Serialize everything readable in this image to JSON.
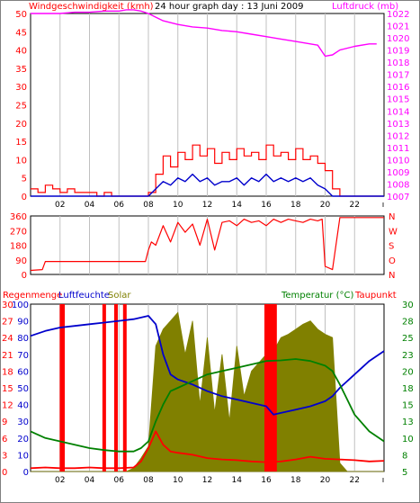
{
  "colors": {
    "wind": "#ff0000",
    "gust": "#ff0000",
    "wind_avg": "#0000cc",
    "pressure": "#ff00ff",
    "winddir": "#ff0000",
    "rain": "#ff0000",
    "humidity": "#0000cc",
    "solar": "#808000",
    "temperature": "#008000",
    "dewpoint": "#ff0000",
    "grid": "#c0c0c0"
  },
  "chart_data": [
    {
      "type": "line",
      "title": "24 hour graph day : 13 Juni 2009",
      "ylabel_left": "Windgeschwindigkeit (kmh)",
      "ylabel_right": "Luftdruck (mb)",
      "x_ticks": [
        "02",
        "04",
        "06",
        "08",
        "10",
        "12",
        "14",
        "16",
        "18",
        "20",
        "22"
      ],
      "y_left_ticks": [
        "0",
        "5",
        "10",
        "15",
        "20",
        "25",
        "30",
        "35",
        "40",
        "45",
        "50"
      ],
      "y_right_ticks": [
        "1007",
        "1008",
        "1009",
        "1010",
        "1011",
        "1012",
        "1013",
        "1014",
        "1015",
        "1016",
        "1017",
        "1018",
        "1019",
        "1020",
        "1021",
        "1022"
      ],
      "ylim_left": [
        0,
        50
      ],
      "ylim_right": [
        1007,
        1022
      ],
      "xlim": [
        0,
        24
      ],
      "series": [
        {
          "key": "pressure",
          "axis": "right",
          "x": [
            0,
            1,
            2,
            3,
            4,
            5,
            6,
            6.5,
            7,
            7.5,
            8,
            8.5,
            9,
            10,
            11,
            12,
            13,
            14,
            15,
            16,
            17,
            18,
            19,
            19.5,
            20,
            20.5,
            21,
            22,
            23,
            23.5
          ],
          "y": [
            1022.0,
            1022.0,
            1022.0,
            1022.1,
            1022.1,
            1022.2,
            1022.2,
            1022.3,
            1022.3,
            1022.2,
            1022.0,
            1021.7,
            1021.4,
            1021.1,
            1020.9,
            1020.8,
            1020.6,
            1020.5,
            1020.3,
            1020.1,
            1019.9,
            1019.7,
            1019.5,
            1019.4,
            1018.5,
            1018.6,
            1019.0,
            1019.3,
            1019.5,
            1019.5
          ]
        },
        {
          "key": "gust",
          "axis": "left",
          "x": [
            0,
            0.5,
            1,
            1.5,
            2,
            2.5,
            3,
            3.5,
            4,
            4.5,
            5,
            5.5,
            6,
            6.5,
            7,
            7.5,
            8,
            8.5,
            9,
            9.5,
            10,
            10.5,
            11,
            11.5,
            12,
            12.5,
            13,
            13.5,
            14,
            14.5,
            15,
            15.5,
            16,
            16.5,
            17,
            17.5,
            18,
            18.5,
            19,
            19.5,
            20,
            20.5,
            21,
            21.5,
            22,
            23,
            24
          ],
          "y": [
            2,
            1,
            3,
            2,
            1,
            2,
            1,
            1,
            1,
            0,
            1,
            0,
            0,
            0,
            0,
            0,
            1,
            6,
            11,
            8,
            12,
            10,
            14,
            11,
            13,
            9,
            12,
            10,
            13,
            11,
            12,
            10,
            14,
            11,
            12,
            10,
            13,
            10,
            11,
            9,
            7,
            2,
            0,
            0,
            0,
            0,
            0
          ]
        },
        {
          "key": "wind_avg",
          "axis": "left",
          "x": [
            0,
            1,
            2,
            3,
            4,
            5,
            6,
            7,
            7.5,
            8,
            8.5,
            9,
            9.5,
            10,
            10.5,
            11,
            11.5,
            12,
            12.5,
            13,
            13.5,
            14,
            14.5,
            15,
            15.5,
            16,
            16.5,
            17,
            17.5,
            18,
            18.5,
            19,
            19.5,
            20,
            20.5,
            21,
            22,
            23,
            24
          ],
          "y": [
            0,
            0,
            0,
            0,
            0,
            0,
            0,
            0,
            0,
            0,
            2,
            4,
            3,
            5,
            4,
            6,
            4,
            5,
            3,
            4,
            4,
            5,
            3,
            5,
            4,
            6,
            4,
            5,
            4,
            5,
            4,
            5,
            3,
            2,
            0,
            0,
            0,
            0,
            0
          ]
        }
      ]
    },
    {
      "type": "line",
      "ylabel_right": [
        "N",
        "W",
        "S",
        "O",
        "N"
      ],
      "y_ticks": [
        "0",
        "90",
        "180",
        "270",
        "360"
      ],
      "ylim": [
        0,
        360
      ],
      "xlim": [
        0,
        24
      ],
      "series": [
        {
          "key": "winddir",
          "x": [
            0,
            0.8,
            1,
            2,
            3,
            4,
            5,
            6,
            7,
            7.8,
            8,
            8.2,
            8.5,
            9,
            9.5,
            10,
            10.5,
            11,
            11.5,
            12,
            12.5,
            13,
            13.5,
            14,
            14.5,
            15,
            15.5,
            16,
            16.5,
            17,
            17.5,
            18,
            18.5,
            19,
            19.5,
            19.8,
            20,
            20.5,
            21,
            22,
            23,
            24
          ],
          "y": [
            25,
            30,
            80,
            80,
            80,
            80,
            80,
            80,
            80,
            80,
            150,
            200,
            180,
            300,
            200,
            320,
            260,
            310,
            180,
            340,
            150,
            320,
            330,
            300,
            340,
            320,
            330,
            300,
            340,
            320,
            340,
            330,
            320,
            340,
            330,
            340,
            50,
            30,
            350,
            350,
            350,
            350
          ]
        }
      ]
    },
    {
      "type": "line",
      "ylabel_left": [
        "Regenmenge",
        "Luftfeuchte",
        "Solar"
      ],
      "ylabel_right": [
        "Temperatur (°C)",
        "Taupunkt"
      ],
      "x_ticks": [
        "02",
        "04",
        "06",
        "08",
        "10",
        "12",
        "14",
        "16",
        "18",
        "20",
        "22"
      ],
      "y_humidity_ticks": [
        "0",
        "10",
        "20",
        "30",
        "40",
        "50",
        "60",
        "70",
        "80",
        "90",
        "100"
      ],
      "y_rain_ticks": [
        "0",
        "3",
        "6",
        "9",
        "12",
        "15",
        "18",
        "21",
        "24",
        "27",
        "30"
      ],
      "y_temp_ticks": [
        "5",
        "8",
        "10",
        "13",
        "15",
        "18",
        "20",
        "23",
        "25",
        "28",
        "30"
      ],
      "ylim_humidity": [
        0,
        100
      ],
      "ylim_temp": [
        5,
        30
      ],
      "xlim": [
        0,
        24
      ],
      "series": [
        {
          "key": "solar",
          "type": "area",
          "axis": "humidity",
          "x": [
            0,
            6.5,
            7,
            7.5,
            8,
            8.5,
            9,
            9.5,
            10,
            10.5,
            11,
            11.5,
            12,
            12.5,
            13,
            13.5,
            14,
            14.5,
            15,
            15.5,
            16,
            16.5,
            17,
            17.5,
            18,
            18.5,
            19,
            19.5,
            20,
            20.5,
            21,
            21.5,
            24
          ],
          "y": [
            0,
            0,
            2,
            8,
            15,
            75,
            85,
            90,
            95,
            70,
            90,
            40,
            80,
            35,
            70,
            30,
            75,
            45,
            60,
            65,
            70,
            72,
            80,
            82,
            85,
            88,
            90,
            85,
            82,
            80,
            5,
            0,
            0
          ]
        },
        {
          "key": "humidity",
          "axis": "humidity",
          "x": [
            0,
            1,
            2,
            3,
            4,
            5,
            6,
            7,
            7.5,
            8,
            8.5,
            9,
            9.5,
            10,
            11,
            12,
            13,
            14,
            15,
            16,
            16.5,
            17,
            18,
            19,
            20,
            20.5,
            21,
            22,
            23,
            24
          ],
          "y": [
            81,
            84,
            86,
            87,
            88,
            89,
            90,
            91,
            92,
            93,
            88,
            70,
            58,
            55,
            52,
            48,
            45,
            43,
            41,
            39,
            34,
            35,
            37,
            39,
            42,
            45,
            50,
            58,
            66,
            72
          ]
        },
        {
          "key": "temperature",
          "axis": "temp",
          "x": [
            0,
            1,
            2,
            3,
            4,
            5,
            6,
            7,
            7.5,
            8,
            8.5,
            9,
            9.5,
            10,
            11,
            12,
            13,
            14,
            15,
            16,
            17,
            18,
            19,
            20,
            20.5,
            21,
            22,
            23,
            24
          ],
          "y": [
            11.0,
            10.0,
            9.5,
            9.0,
            8.5,
            8.2,
            8.0,
            8.0,
            8.5,
            9.5,
            12.5,
            15.0,
            17.0,
            17.5,
            18.5,
            19.5,
            20.0,
            20.5,
            21.0,
            21.5,
            21.6,
            21.8,
            21.5,
            20.8,
            20.0,
            18.0,
            13.5,
            11.0,
            9.5
          ]
        },
        {
          "key": "dewpoint",
          "axis": "temp",
          "x": [
            0,
            1,
            2,
            3,
            4,
            5,
            6,
            7,
            7.5,
            8,
            8.5,
            9,
            9.5,
            10,
            11,
            12,
            13,
            14,
            15,
            16,
            17,
            18,
            19,
            20,
            21,
            22,
            23,
            24
          ],
          "y": [
            5.5,
            5.6,
            5.5,
            5.5,
            5.6,
            5.5,
            5.5,
            5.6,
            6.5,
            8.5,
            11.0,
            9.0,
            8.0,
            7.8,
            7.5,
            7.0,
            6.8,
            6.7,
            6.5,
            6.4,
            6.5,
            6.8,
            7.2,
            6.9,
            6.8,
            6.7,
            6.5,
            6.6
          ]
        },
        {
          "key": "rain",
          "type": "bar",
          "axis": "humidity",
          "x": [
            2.1,
            2.2,
            5.0,
            5.8,
            6.4,
            16.0,
            16.2,
            16.4,
            16.6
          ],
          "y": [
            100,
            100,
            100,
            100,
            100,
            100,
            100,
            100,
            100
          ]
        }
      ]
    }
  ]
}
